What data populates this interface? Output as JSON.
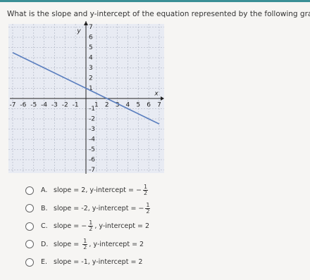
{
  "question": "What is the slope and y-intercept of the equation represented by the following graph",
  "graph": {
    "x_label": "x",
    "y_label": "y",
    "xticks": [
      -7,
      -6,
      -5,
      -4,
      -3,
      -2,
      -1,
      1,
      2,
      3,
      4,
      5,
      6,
      7
    ],
    "yticks": [
      -7,
      -6,
      -5,
      -4,
      -3,
      -2,
      -1,
      1,
      2,
      3,
      4,
      5,
      6,
      7
    ],
    "xlim": [
      -7,
      7
    ],
    "ylim": [
      -7,
      7
    ],
    "line": {
      "x": [
        -7,
        7
      ],
      "y": [
        4.5,
        -2.5
      ],
      "color": "#5b7fbf"
    }
  },
  "options": [
    {
      "letter": "A.",
      "parts": [
        "slope = 2, y-intercept = −",
        {
          "num": "1",
          "den": "2"
        }
      ]
    },
    {
      "letter": "B.",
      "parts": [
        "slope = -2, y-intercept = −",
        {
          "num": "1",
          "den": "2"
        }
      ]
    },
    {
      "letter": "C.",
      "parts": [
        "slope = −",
        {
          "num": "1",
          "den": "2"
        },
        ", y-intercept = 2"
      ]
    },
    {
      "letter": "D.",
      "parts": [
        "slope = ",
        {
          "num": "1",
          "den": "2"
        },
        ", y-intercept = 2"
      ]
    },
    {
      "letter": "E.",
      "parts": [
        "slope = -1, y-intercept = 2"
      ]
    }
  ]
}
